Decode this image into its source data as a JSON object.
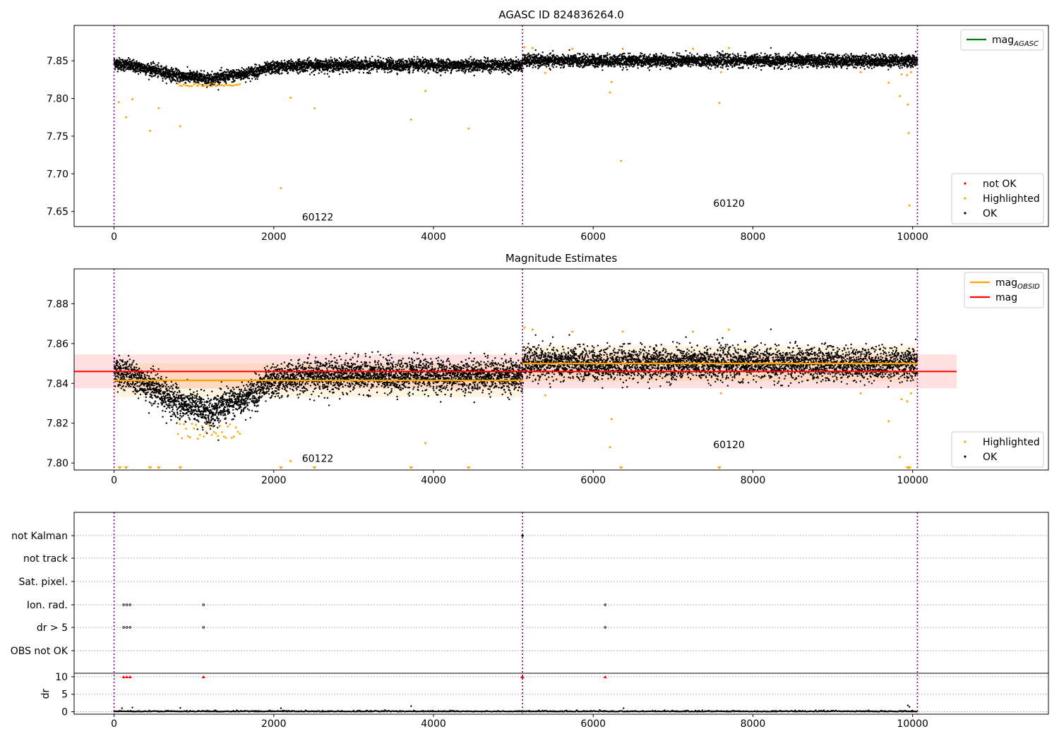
{
  "chart_data": [
    {
      "type": "scatter",
      "title": "AGASC ID 824836264.0",
      "xlim": [
        -500,
        11700
      ],
      "ylim": [
        7.63,
        7.897
      ],
      "xticks": [
        0,
        2000,
        4000,
        6000,
        8000,
        10000
      ],
      "yticks": [
        7.65,
        7.7,
        7.75,
        7.8,
        7.85
      ],
      "ytick_labels": [
        "7.65",
        "7.70",
        "7.75",
        "7.80",
        "7.85"
      ],
      "obsid_boundaries": [
        0,
        5115,
        10060
      ],
      "obsid_labels": [
        {
          "text": "60122",
          "x": 2550,
          "y": 7.638
        },
        {
          "text": "60120",
          "x": 7700,
          "y": 7.656
        }
      ],
      "legend_upper": {
        "placement": "upper right",
        "entries": [
          {
            "label": "mag",
            "sub": "AGASC",
            "color": "#008000"
          }
        ]
      },
      "legend_lower": {
        "placement": "lower right",
        "entries": [
          {
            "label": "not OK",
            "color": "#ff0000"
          },
          {
            "label": "Highlighted",
            "color": "#ffa500"
          },
          {
            "label": "OK",
            "color": "#000000"
          }
        ]
      },
      "trend": {
        "description": "OK points follow a dip between obsid 60122 start and ~2000",
        "segments": [
          {
            "x": [
              0,
              400,
              800,
              1200,
              1600,
              2000,
              2400,
              5115
            ],
            "y": [
              7.847,
              7.84,
              7.83,
              7.826,
              7.832,
              7.841,
              7.844,
              7.844
            ]
          },
          {
            "x": [
              5115,
              10060
            ],
            "y": [
              7.85,
              7.85
            ]
          }
        ],
        "scatter_sd": 0.004
      },
      "highlighted_points": [
        [
          60,
          7.795
        ],
        [
          150,
          7.775
        ],
        [
          230,
          7.799
        ],
        [
          450,
          7.757
        ],
        [
          560,
          7.787
        ],
        [
          830,
          7.763
        ],
        [
          2090,
          7.681
        ],
        [
          2210,
          7.801
        ],
        [
          2510,
          7.787
        ],
        [
          3720,
          7.772
        ],
        [
          3900,
          7.81
        ],
        [
          4440,
          7.76
        ],
        [
          5140,
          7.868
        ],
        [
          5400,
          7.834
        ],
        [
          6210,
          7.808
        ],
        [
          6230,
          7.822
        ],
        [
          6350,
          7.717
        ],
        [
          6370,
          7.866
        ],
        [
          7250,
          7.866
        ],
        [
          7580,
          7.794
        ],
        [
          7600,
          7.835
        ],
        [
          7700,
          7.867
        ],
        [
          9350,
          7.835
        ],
        [
          9700,
          7.821
        ],
        [
          9840,
          7.803
        ],
        [
          9860,
          7.832
        ],
        [
          9930,
          7.831
        ],
        [
          9940,
          7.792
        ],
        [
          9950,
          7.754
        ],
        [
          9960,
          7.658
        ],
        [
          9980,
          7.835
        ],
        [
          5240,
          7.867
        ],
        [
          5740,
          7.866
        ]
      ]
    },
    {
      "type": "scatter",
      "title": "Magnitude Estimates",
      "xlim": [
        -500,
        11700
      ],
      "ylim": [
        7.7965,
        7.8975
      ],
      "xticks": [
        0,
        2000,
        4000,
        6000,
        8000,
        10000
      ],
      "yticks": [
        7.8,
        7.82,
        7.84,
        7.86,
        7.88
      ],
      "ytick_labels": [
        "7.80",
        "7.82",
        "7.84",
        "7.86",
        "7.88"
      ],
      "obsid_boundaries": [
        0,
        5115,
        10060
      ],
      "obsid_labels": [
        {
          "text": "60122",
          "x": 2550,
          "y": 7.8005
        },
        {
          "text": "60120",
          "x": 7700,
          "y": 7.8075
        }
      ],
      "mag": {
        "value": 7.846,
        "band": [
          7.8375,
          7.8545
        ],
        "x_range": [
          -500,
          10550
        ],
        "color": "#ff0000"
      },
      "mag_obsid": [
        {
          "x": [
            0,
            5115
          ],
          "value": 7.8415,
          "band": [
            7.833,
            7.85
          ]
        },
        {
          "x": [
            5115,
            10060
          ],
          "value": 7.85,
          "band": [
            7.841,
            7.859
          ]
        }
      ],
      "legend_upper": {
        "placement": "upper right",
        "entries": [
          {
            "label": "mag",
            "sub": "OBSID",
            "color": "#ffa500"
          },
          {
            "label": "mag",
            "sub": "",
            "color": "#ff0000"
          }
        ]
      },
      "legend_lower": {
        "placement": "lower right",
        "entries": [
          {
            "label": "Highlighted",
            "color": "#ffa500"
          },
          {
            "label": "OK",
            "color": "#000000"
          }
        ]
      },
      "clipped_markers_x": [
        70,
        150,
        450,
        560,
        830,
        2090,
        2510,
        3720,
        4440,
        6350,
        7580,
        9940,
        9960
      ]
    },
    {
      "type": "scatter",
      "title": "",
      "xlim": [
        -500,
        11700
      ],
      "flag_rows": [
        "not Kalman",
        "not track",
        "Sat. pixel.",
        "Ion. rad.",
        "dr > 5",
        "OBS not OK"
      ],
      "flag_points": [
        {
          "row": "not Kalman",
          "x": [
            5115
          ]
        },
        {
          "row": "Ion. rad.",
          "x": [
            120,
            160,
            200,
            1120,
            6150
          ]
        },
        {
          "row": "dr > 5",
          "x": [
            120,
            160,
            200,
            1120,
            6150
          ]
        }
      ],
      "dr": {
        "ylabel": "dr",
        "yticks": [
          0,
          5,
          10
        ],
        "ytick_labels": [
          "0",
          "5",
          "10"
        ],
        "ylim": [
          -0.7,
          11
        ],
        "capped_markers_x": [
          120,
          160,
          200,
          1120,
          5110,
          5115,
          6150
        ],
        "large_points": [
          [
            100,
            1.0
          ],
          [
            230,
            1.2
          ],
          [
            830,
            1.1
          ],
          [
            2090,
            1.0
          ],
          [
            3720,
            1.6
          ],
          [
            9940,
            1.8
          ],
          [
            9960,
            1.4
          ],
          [
            6380,
            1.0
          ]
        ]
      },
      "xticks": [
        0,
        2000,
        4000,
        6000,
        8000,
        10000
      ]
    }
  ]
}
